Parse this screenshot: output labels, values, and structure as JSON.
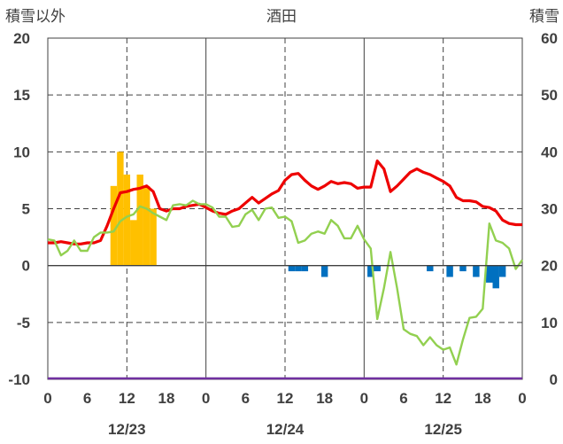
{
  "chart_data": {
    "type": "bar+line",
    "title": "酒田",
    "left_axis_label": "積雪以外",
    "right_axis_label": "積雪",
    "left_axis": {
      "min": -10,
      "max": 20,
      "ticks": [
        "-10",
        "-5",
        "0",
        "5",
        "10",
        "15",
        "20"
      ]
    },
    "right_axis": {
      "min": 0,
      "max": 60,
      "ticks": [
        "0",
        "10",
        "20",
        "30",
        "40",
        "50",
        "60"
      ]
    },
    "x_tick_labels": [
      "0",
      "6",
      "12",
      "18",
      "0",
      "6",
      "12",
      "18",
      "0",
      "6",
      "12",
      "18",
      "0"
    ],
    "date_labels": [
      "12/23",
      "12/24",
      "12/25"
    ],
    "bars": {
      "hours": [
        10,
        11,
        12,
        13,
        14,
        15,
        16,
        37,
        38,
        39,
        42,
        49,
        50,
        58,
        61,
        63,
        65,
        67,
        68,
        69
      ],
      "values": [
        7,
        10,
        8,
        4,
        8,
        7,
        5,
        -0.5,
        -0.5,
        -0.5,
        -1,
        -1,
        -0.5,
        -0.5,
        -1,
        -0.5,
        -1,
        -1.5,
        -2,
        -1
      ]
    },
    "series": [
      {
        "color": "#ee0000",
        "values": [
          2.0,
          2.0,
          2.1,
          2.0,
          1.9,
          1.9,
          2.0,
          2.0,
          2.2,
          3.5,
          5.0,
          6.4,
          6.5,
          6.7,
          6.8,
          7.0,
          6.5,
          5.0,
          4.8,
          5.0,
          5.0,
          5.2,
          5.3,
          5.4,
          5.1,
          4.8,
          4.6,
          4.5,
          4.8,
          5.0,
          5.5,
          6.0,
          5.5,
          5.9,
          6.3,
          6.6,
          7.5,
          8.0,
          8.1,
          7.5,
          7.0,
          6.7,
          7.0,
          7.4,
          7.2,
          7.3,
          7.2,
          6.8,
          6.9,
          6.9,
          9.2,
          8.5,
          6.5,
          7.0,
          7.6,
          8.2,
          8.5,
          8.2,
          8.0,
          7.7,
          7.4,
          7.0,
          6.0,
          5.7,
          5.7,
          5.6,
          5.2,
          5.1,
          4.8,
          4.0,
          3.7,
          3.6,
          3.6
        ]
      },
      {
        "color": "#92d050",
        "values": [
          2.3,
          2.2,
          0.9,
          1.3,
          2.2,
          1.3,
          1.3,
          2.5,
          2.9,
          2.9,
          3.0,
          3.9,
          4.3,
          4.5,
          5.2,
          5.0,
          4.6,
          4.3,
          4.0,
          5.3,
          5.4,
          5.3,
          5.7,
          5.4,
          5.4,
          5.1,
          4.3,
          4.3,
          3.4,
          3.5,
          4.5,
          4.9,
          4.0,
          5.0,
          5.1,
          4.2,
          4.3,
          3.9,
          2.0,
          2.2,
          2.8,
          3.0,
          2.8,
          4.0,
          3.5,
          2.4,
          2.4,
          3.5,
          2.3,
          1.5,
          -4.7,
          -2.0,
          1.2,
          -2.0,
          -5.6,
          -6.0,
          -6.2,
          -7.0,
          -6.3,
          -7.0,
          -7.4,
          -7.2,
          -8.7,
          -6.5,
          -4.6,
          -4.5,
          -3.8,
          3.7,
          2.2,
          2.0,
          1.5,
          -0.3,
          0.5
        ]
      }
    ]
  }
}
